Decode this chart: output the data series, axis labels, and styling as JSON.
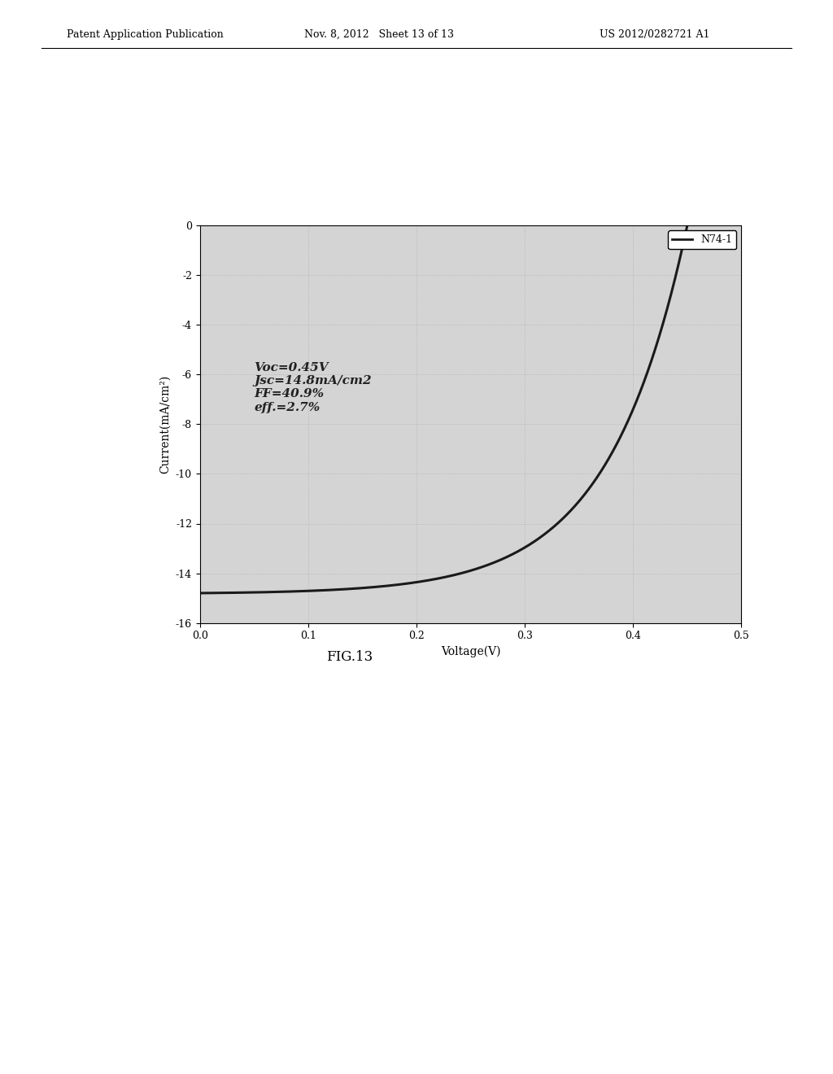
{
  "header_left": "Patent Application Publication",
  "header_center": "Nov. 8, 2012   Sheet 13 of 13",
  "header_right": "US 2012/0282721 A1",
  "fig_label": "FIG.13",
  "xlabel": "Voltage(V)",
  "ylabel": "Current(mA/cm²)",
  "xlim": [
    0.0,
    0.5
  ],
  "ylim": [
    -16,
    0
  ],
  "xticks": [
    0.0,
    0.1,
    0.2,
    0.3,
    0.4,
    0.5
  ],
  "xtick_labels": [
    "0.0",
    "0.1",
    "0.2",
    "0.3",
    "0.4",
    "0.5"
  ],
  "yticks": [
    0,
    -2,
    -4,
    -6,
    -8,
    -10,
    -12,
    -14,
    -16
  ],
  "ytick_labels": [
    "0",
    "-2",
    "-4",
    "-6",
    "-8",
    "-10",
    "-12",
    "-14",
    "-16"
  ],
  "Voc": 0.45,
  "Jsc": 14.8,
  "annotation_text": "Voc=0.45V\nJsc=14.8mA/cm2\nFF=40.9%\neff.=2.7%",
  "legend_label": "N74-1",
  "curve_color": "#1a1a1a",
  "plot_bg_color": "#d4d4d4",
  "header_fontsize": 9,
  "axis_label_fontsize": 10,
  "tick_fontsize": 9,
  "annotation_fontsize": 11,
  "legend_fontsize": 9,
  "ideality_factor": 2.8,
  "kT_q": 0.02585
}
